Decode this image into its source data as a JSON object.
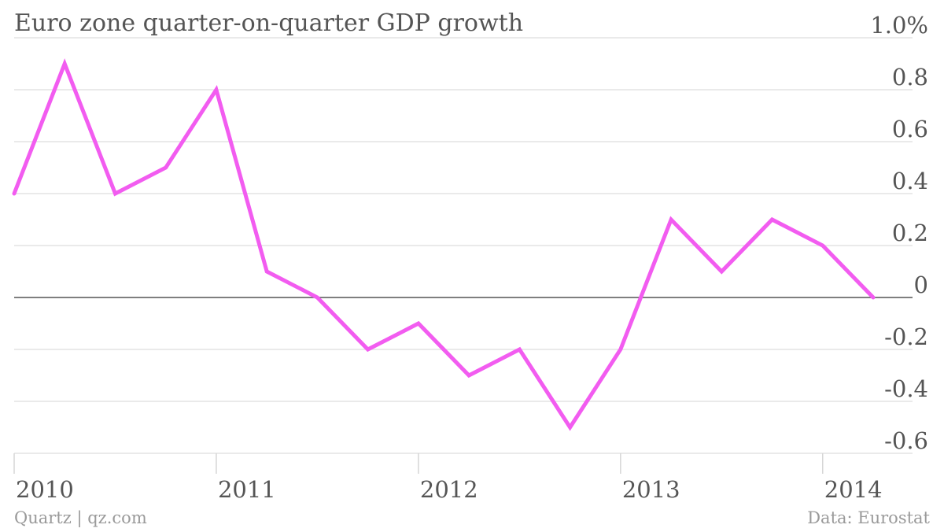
{
  "chart_data": {
    "type": "line",
    "title": "Euro zone quarter-on-quarter GDP growth",
    "y_tick_labels": [
      "1.0%",
      "0.8",
      "0.6",
      "0.4",
      "0.2",
      "0",
      "-0.2",
      "-0.4",
      "-0.6"
    ],
    "y_ticks": [
      1.0,
      0.8,
      0.6,
      0.4,
      0.2,
      0,
      -0.2,
      -0.4,
      -0.6
    ],
    "ylim": [
      -0.6,
      1.0
    ],
    "x_tick_labels": [
      "2010",
      "2011",
      "2012",
      "2013",
      "2014"
    ],
    "x_ticks": [
      "2010-Q1",
      "2011-Q1",
      "2012-Q1",
      "2013-Q1",
      "2014-Q1"
    ],
    "xlim": [
      "2010-Q1",
      "2014-Q2"
    ],
    "grid": true,
    "series": [
      {
        "color": "#f25cf0",
        "x": [
          "2010-Q1",
          "2010-Q2",
          "2010-Q3",
          "2010-Q4",
          "2011-Q1",
          "2011-Q2",
          "2011-Q3",
          "2011-Q4",
          "2012-Q1",
          "2012-Q2",
          "2012-Q3",
          "2012-Q4",
          "2013-Q1",
          "2013-Q2",
          "2013-Q3",
          "2013-Q4",
          "2014-Q1",
          "2014-Q2"
        ],
        "values": [
          0.4,
          0.9,
          0.4,
          0.5,
          0.8,
          0.1,
          0.0,
          -0.2,
          -0.1,
          -0.3,
          -0.2,
          -0.5,
          -0.2,
          0.3,
          0.1,
          0.3,
          0.2,
          0.0
        ]
      }
    ]
  },
  "footer": {
    "source_left": "Quartz | qz.com",
    "source_right": "Data: Eurostat"
  }
}
